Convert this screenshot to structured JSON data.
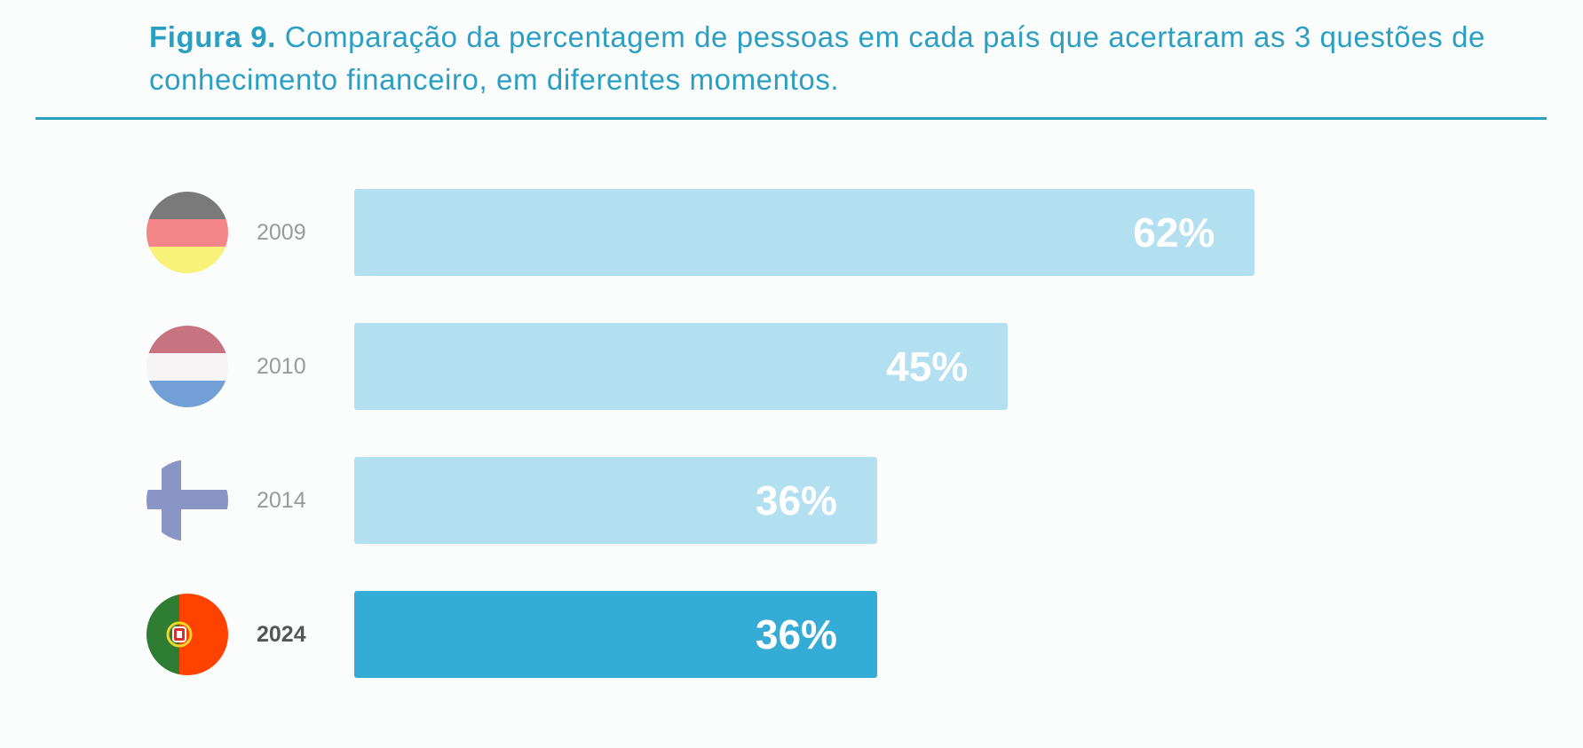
{
  "title": {
    "prefix": "Figura 9.",
    "text": " Comparação da percentagem de pessoas em cada país que acertaram as 3 questões de conhecimento financeiro, em diferentes momentos."
  },
  "chart_data": {
    "type": "bar",
    "orientation": "horizontal",
    "title": "Figura 9. Comparação da percentagem de pessoas em cada país que acertaram as 3 questões de conhecimento financeiro, em diferentes momentos.",
    "categories": [
      "2009",
      "2010",
      "2014",
      "2024"
    ],
    "countries": [
      "Germany",
      "Netherlands",
      "Finland",
      "Portugal"
    ],
    "values": [
      62,
      45,
      36,
      36
    ],
    "labels": [
      "62%",
      "45%",
      "36%",
      "36%"
    ],
    "highlighted": "2024",
    "xlim": [
      0,
      100
    ],
    "unit": "%",
    "colors": {
      "default": "#b3e0f0",
      "highlight": "#35acd6",
      "title": "#2b9fc3"
    }
  }
}
